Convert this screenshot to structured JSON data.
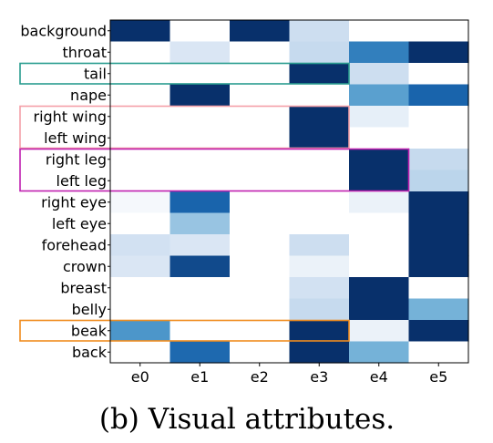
{
  "chart_data": {
    "type": "heatmap",
    "rows": [
      "background",
      "throat",
      "tail",
      "nape",
      "right wing",
      "left wing",
      "right leg",
      "left leg",
      "right eye",
      "left eye",
      "forehead",
      "crown",
      "breast",
      "belly",
      "beak",
      "back"
    ],
    "columns": [
      "e0",
      "e1",
      "e2",
      "e3",
      "e4",
      "e5"
    ],
    "values": [
      [
        1.0,
        0.0,
        1.0,
        0.2,
        0.0,
        0.0
      ],
      [
        0.0,
        0.15,
        0.0,
        0.22,
        0.7,
        1.0
      ],
      [
        0.0,
        0.0,
        0.0,
        1.0,
        0.2,
        0.0
      ],
      [
        0.0,
        1.0,
        0.0,
        0.0,
        0.55,
        0.8
      ],
      [
        0.0,
        0.0,
        0.0,
        1.0,
        0.1,
        0.0
      ],
      [
        0.0,
        0.0,
        0.0,
        1.0,
        0.0,
        0.0
      ],
      [
        0.0,
        0.0,
        0.0,
        0.0,
        1.0,
        0.22
      ],
      [
        0.0,
        0.0,
        0.0,
        0.0,
        1.0,
        0.25
      ],
      [
        0.04,
        0.8,
        0.0,
        0.0,
        0.08,
        1.0
      ],
      [
        0.0,
        0.35,
        0.0,
        0.0,
        0.0,
        1.0
      ],
      [
        0.18,
        0.15,
        0.0,
        0.2,
        0.0,
        1.0
      ],
      [
        0.15,
        0.9,
        0.0,
        0.08,
        0.0,
        1.0
      ],
      [
        0.0,
        0.0,
        0.0,
        0.18,
        1.0,
        0.0
      ],
      [
        0.0,
        0.0,
        0.0,
        0.22,
        1.0,
        0.45
      ],
      [
        0.6,
        0.0,
        0.0,
        1.0,
        0.08,
        1.0
      ],
      [
        0.0,
        0.78,
        0.0,
        1.0,
        0.45,
        0.0
      ]
    ],
    "colormap": [
      "#ffffff",
      "#08306b"
    ],
    "highlight_boxes": [
      {
        "rows": [
          "tail"
        ],
        "columns": [
          "e0",
          "e3"
        ],
        "color": "#2a9d8f"
      },
      {
        "rows": [
          "right wing",
          "left wing"
        ],
        "columns": [
          "e0",
          "e3"
        ],
        "color": "#f4a0a8"
      },
      {
        "rows": [
          "right leg",
          "left leg"
        ],
        "columns": [
          "e0",
          "e4"
        ],
        "color": "#c020b0"
      },
      {
        "rows": [
          "beak"
        ],
        "columns": [
          "e0",
          "e3"
        ],
        "color": "#f08c1e"
      }
    ]
  },
  "caption": "(b)  Visual attributes."
}
